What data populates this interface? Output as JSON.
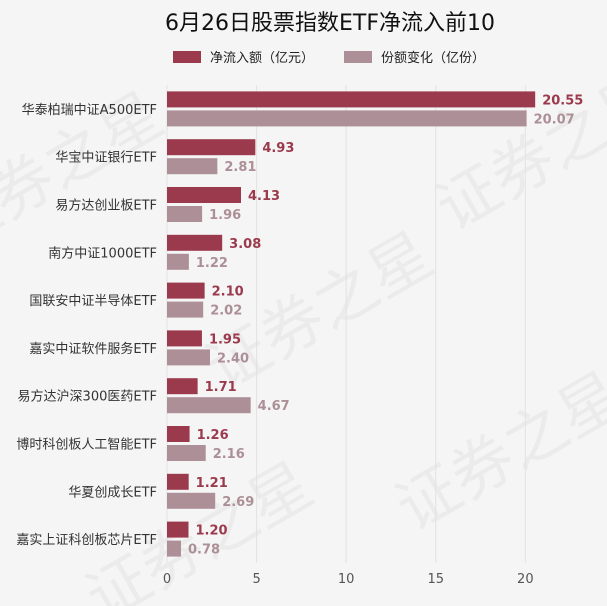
{
  "chart_data": {
    "type": "bar",
    "orientation": "horizontal",
    "title": "6月26日股票指数ETF净流入前10",
    "categories": [
      "华泰柏瑞中证A500ETF",
      "华宝中证银行ETF",
      "易方达创业板ETF",
      "南方中证1000ETF",
      "国联安中证半导体ETF",
      "嘉实中证软件服务ETF",
      "易方达沪深300医药ETF",
      "博时科创板人工智能ETF",
      "华夏创成长ETF",
      "嘉实上证科创板芯片ETF"
    ],
    "series": [
      {
        "name": "净流入额（亿元）",
        "color": "#9b3a4c",
        "values": [
          20.55,
          4.93,
          4.13,
          3.08,
          2.1,
          1.95,
          1.71,
          1.26,
          1.21,
          1.2
        ],
        "labels": [
          "20.55",
          "4.93",
          "4.13",
          "3.08",
          "2.10",
          "1.95",
          "1.71",
          "1.26",
          "1.21",
          "1.20"
        ]
      },
      {
        "name": "份额变化（亿份）",
        "color": "#ac8f97",
        "values": [
          20.07,
          2.81,
          1.96,
          1.22,
          2.02,
          2.4,
          4.67,
          2.16,
          2.69,
          0.78
        ],
        "labels": [
          "20.07",
          "2.81",
          "1.96",
          "1.22",
          "2.02",
          "2.40",
          "4.67",
          "2.16",
          "2.69",
          "0.78"
        ]
      }
    ],
    "xlim": [
      0,
      24
    ],
    "xticks": [
      "0",
      "5",
      "10",
      "15",
      "20"
    ],
    "grid": "vertical",
    "legend": "top-center",
    "watermark": "证券之星"
  }
}
